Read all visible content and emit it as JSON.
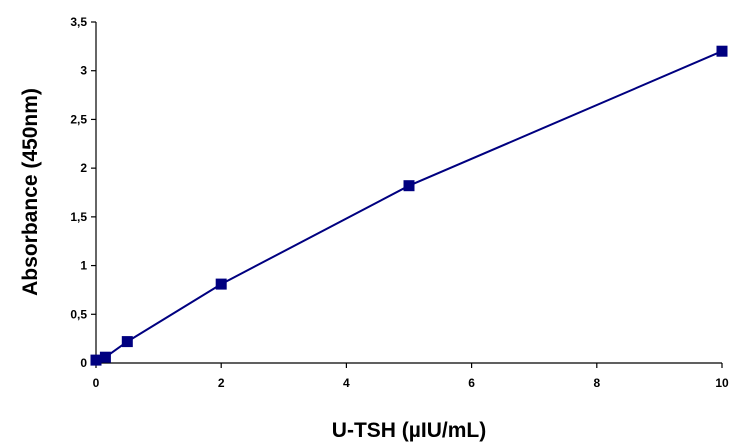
{
  "chart_data": {
    "type": "line",
    "title": "",
    "xlabel": "U-TSH (µIU/mL)",
    "ylabel": "Absorbance (450nm)",
    "xlim": [
      0,
      10
    ],
    "ylim": [
      0,
      3.5
    ],
    "x_ticks": [
      0,
      2,
      4,
      6,
      8,
      10
    ],
    "x_tick_labels": [
      "0",
      "2",
      "4",
      "6",
      "8",
      "10"
    ],
    "y_ticks": [
      0,
      0.5,
      1,
      1.5,
      2,
      2.5,
      3,
      3.5
    ],
    "y_tick_labels": [
      "0",
      "0,5",
      "1",
      "1,5",
      "2",
      "2,5",
      "3",
      "3,5"
    ],
    "grid": false,
    "legend": "none",
    "series": [
      {
        "color": "#000080",
        "marker": "square",
        "x": [
          0,
          0.15,
          0.5,
          2,
          5,
          10
        ],
        "y": [
          0.03,
          0.06,
          0.22,
          0.81,
          1.82,
          3.2
        ]
      }
    ]
  }
}
